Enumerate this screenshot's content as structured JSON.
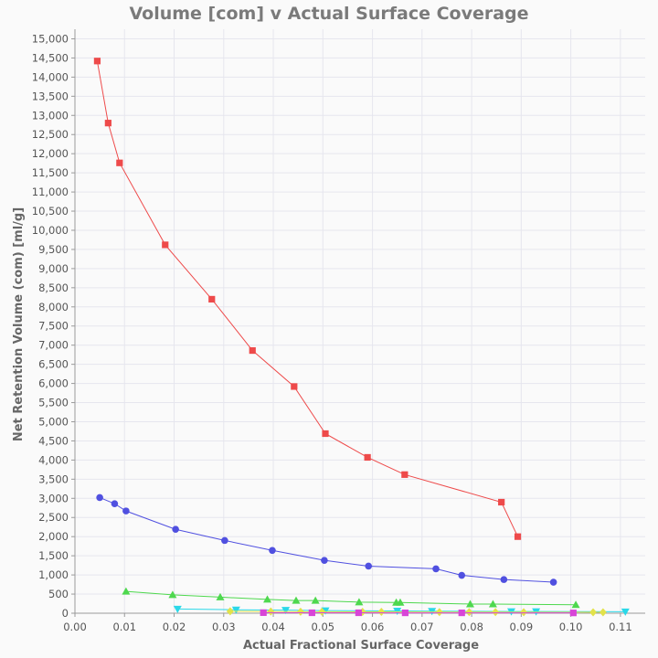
{
  "chart_data": {
    "type": "scatter",
    "title": "Volume [com] v Actual Surface Coverage",
    "xlabel": "Actual Fractional Surface Coverage",
    "ylabel": "Net Retention Volume (com) [ml/g]",
    "xlim": [
      0,
      0.115
    ],
    "ylim": [
      0,
      15250
    ],
    "x_ticks": [
      "0.00",
      "0.01",
      "0.02",
      "0.03",
      "0.04",
      "0.05",
      "0.06",
      "0.07",
      "0.08",
      "0.09",
      "0.10",
      "0.11"
    ],
    "y_ticks": [
      "0",
      "500",
      "1,000",
      "1,500",
      "2,000",
      "2,500",
      "3,000",
      "3,500",
      "4,000",
      "4,500",
      "5,000",
      "5,500",
      "6,000",
      "6,500",
      "7,000",
      "7,500",
      "8,000",
      "8,500",
      "9,000",
      "9,500",
      "10,000",
      "10,500",
      "11,000",
      "11,500",
      "12,000",
      "12,500",
      "13,000",
      "13,500",
      "14,000",
      "14,500",
      "15,000"
    ],
    "grid": true,
    "legend": "none",
    "series": [
      {
        "color": "#ee4a4a",
        "marker": "square",
        "x": [
          0.0045,
          0.0067,
          0.009,
          0.0182,
          0.0276,
          0.0358,
          0.0442,
          0.0505,
          0.059,
          0.0665,
          0.086,
          0.0893
        ],
        "y": [
          14420,
          12800,
          11760,
          9620,
          8200,
          6860,
          5920,
          4690,
          4070,
          3620,
          2900,
          2000
        ]
      },
      {
        "color": "#5050e0",
        "marker": "circle",
        "x": [
          0.005,
          0.008,
          0.0103,
          0.0203,
          0.0302,
          0.0398,
          0.0503,
          0.0592,
          0.0728,
          0.078,
          0.0865,
          0.0965
        ],
        "y": [
          3020,
          2860,
          2670,
          2190,
          1900,
          1640,
          1380,
          1230,
          1160,
          990,
          880,
          810
        ]
      },
      {
        "color": "#4ed84e",
        "marker": "triangle-up",
        "x": [
          0.0103,
          0.0197,
          0.0293,
          0.0388,
          0.0446,
          0.0485,
          0.0573,
          0.0648,
          0.0656,
          0.0797,
          0.0843,
          0.101
        ],
        "y": [
          570,
          480,
          420,
          360,
          330,
          330,
          290,
          280,
          280,
          240,
          240,
          220
        ]
      },
      {
        "color": "#2ad8e8",
        "marker": "triangle-down",
        "x": [
          0.0207,
          0.0325,
          0.0425,
          0.0505,
          0.065,
          0.072,
          0.088,
          0.093,
          0.111
        ],
        "y": [
          110,
          90,
          80,
          70,
          60,
          55,
          45,
          45,
          40
        ]
      },
      {
        "color": "#e2e24a",
        "marker": "diamond",
        "x": [
          0.0313,
          0.0395,
          0.0455,
          0.0498,
          0.058,
          0.0618,
          0.0735,
          0.0795,
          0.0848,
          0.0905,
          0.1045,
          0.1065
        ],
        "y": [
          50,
          45,
          40,
          40,
          35,
          35,
          30,
          30,
          30,
          28,
          25,
          25
        ]
      },
      {
        "color": "#d845d8",
        "marker": "square",
        "x": [
          0.038,
          0.0478,
          0.0572,
          0.0666,
          0.078,
          0.1005
        ],
        "y": [
          15,
          12,
          12,
          10,
          10,
          8
        ]
      }
    ]
  }
}
